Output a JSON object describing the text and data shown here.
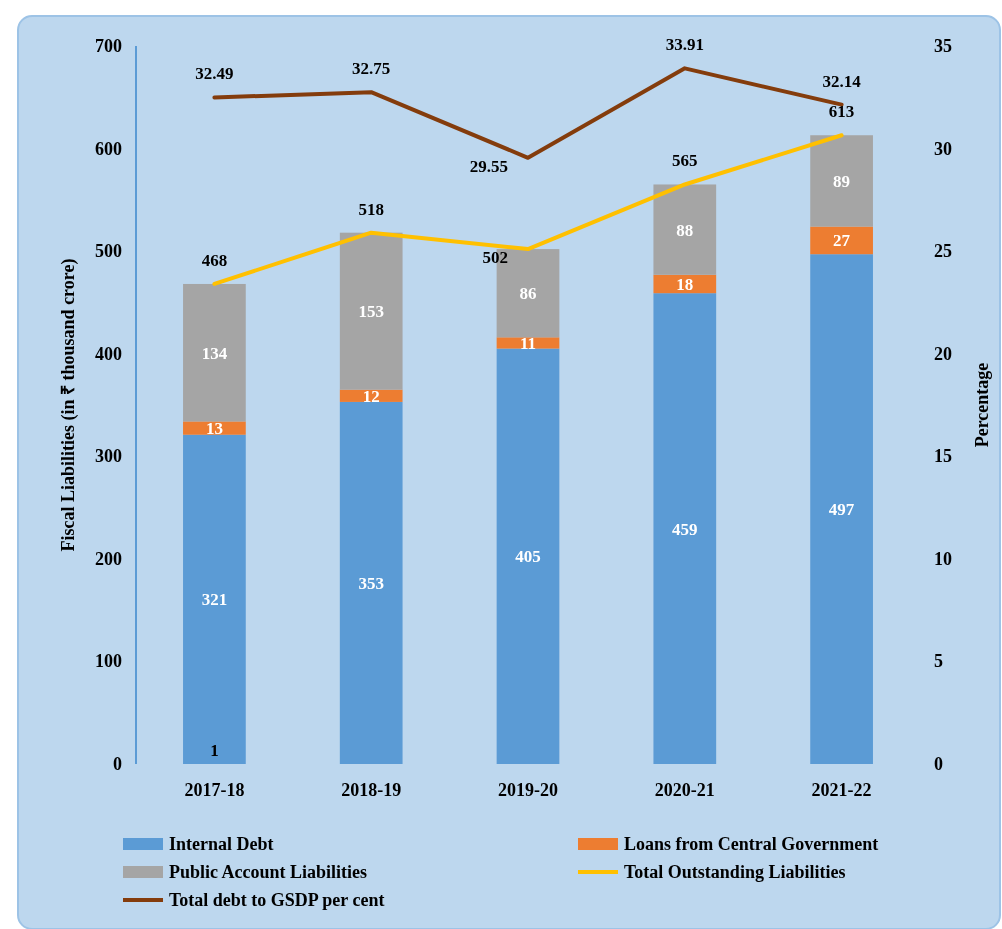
{
  "chart_data": {
    "type": "bar",
    "stacked": true,
    "ylabel": "Fiscal Liabilities  (in ₹ thousand crore)",
    "y2label": "Percentage",
    "categories": [
      "2017-18",
      "2018-19",
      "2019-20",
      "2020-21",
      "2021-22"
    ],
    "series": [
      {
        "name": "Internal Debt",
        "color": "#5b9bd5",
        "values": [
          321,
          353,
          405,
          459,
          497
        ]
      },
      {
        "name": "Loans from Central Government",
        "color": "#ed7d31",
        "values": [
          13,
          12,
          11,
          18,
          27
        ]
      },
      {
        "name": "Public Account Liabilities",
        "color": "#a5a5a5",
        "values": [
          134,
          153,
          86,
          88,
          89
        ]
      },
      {
        "name": "Total Outstanding Liabilities",
        "type": "line",
        "color": "#ffc000",
        "values": [
          468,
          518,
          502,
          565,
          613
        ]
      },
      {
        "name": "Total debt to GSDP per cent",
        "type": "line",
        "axis": "y2",
        "color": "#843c0c",
        "values": [
          32.49,
          32.75,
          29.55,
          33.91,
          32.14
        ]
      }
    ],
    "ylim": [
      0,
      700
    ],
    "yticks": [
      0,
      100,
      200,
      300,
      400,
      500,
      600,
      700
    ],
    "y2lim": [
      0,
      35
    ],
    "y2ticks": [
      0,
      5,
      10,
      15,
      20,
      25,
      30,
      35
    ],
    "data_labels": true,
    "grid": false,
    "legend": "bottom",
    "annotations": [
      {
        "text": "1",
        "x": "2017-18",
        "y": 0
      }
    ]
  }
}
